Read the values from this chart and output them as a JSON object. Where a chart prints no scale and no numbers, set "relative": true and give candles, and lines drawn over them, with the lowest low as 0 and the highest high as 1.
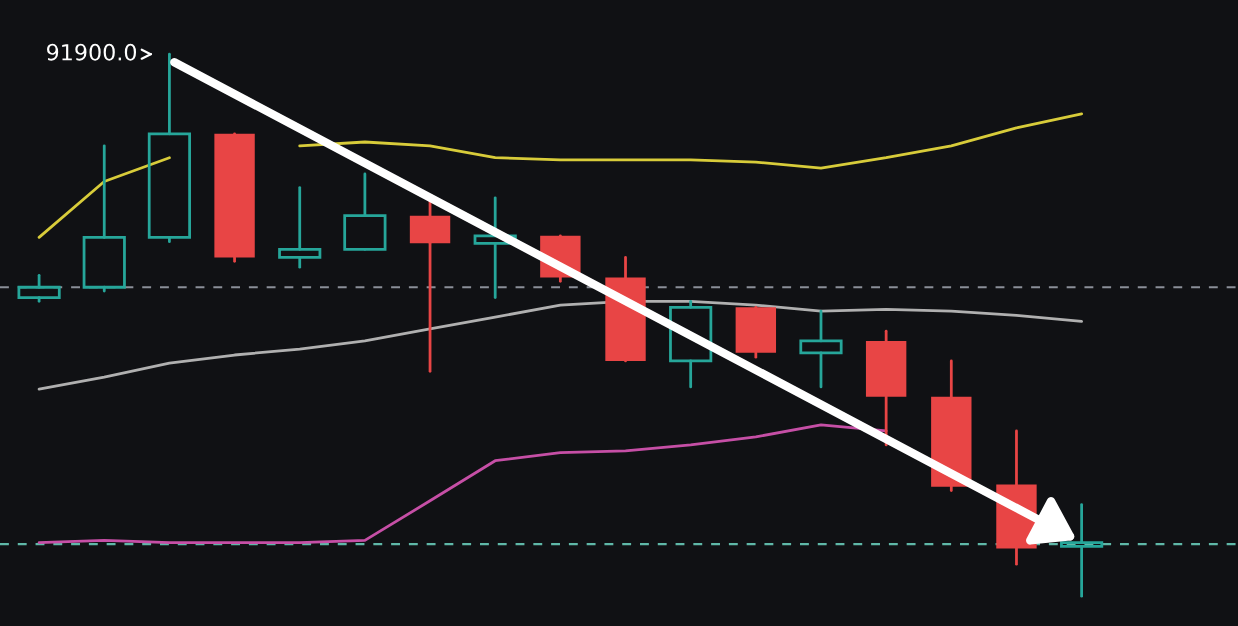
{
  "chart_data": {
    "type": "candlestick",
    "relative": true,
    "categories": [
      null,
      null,
      null,
      null,
      null,
      null,
      null,
      null,
      null,
      null,
      null,
      null,
      null,
      null,
      null,
      null,
      null
    ],
    "ohlc": [
      [
        0.551,
        0.592,
        0.544,
        0.57
      ],
      [
        0.57,
        0.831,
        0.563,
        0.662
      ],
      [
        0.662,
        1,
        0.654,
        0.853
      ],
      [
        0.853,
        0.853,
        0.618,
        0.625
      ],
      [
        0.625,
        0.754,
        0.607,
        0.64
      ],
      [
        0.64,
        0.779,
        0.64,
        0.702
      ],
      [
        0.702,
        0.728,
        0.415,
        0.651
      ],
      [
        0.651,
        0.735,
        0.551,
        0.665
      ],
      [
        0.665,
        0.665,
        0.581,
        0.588
      ],
      [
        0.588,
        0.625,
        0.434,
        0.434
      ],
      [
        0.434,
        0.544,
        0.386,
        0.533
      ],
      [
        0.533,
        0.533,
        0.441,
        0.449
      ],
      [
        0.449,
        0.526,
        0.386,
        0.471
      ],
      [
        0.471,
        0.489,
        0.279,
        0.368
      ],
      [
        0.368,
        0.434,
        0.195,
        0.202
      ],
      [
        0.206,
        0.305,
        0.059,
        0.088
      ],
      [
        0.092,
        0.169,
        0,
        0.099
      ]
    ],
    "colors": [
      "#26a69a",
      "#26a69a",
      "#26a69a",
      "#e84545",
      "#26a69a",
      "#26a69a",
      "#e84545",
      "#26a69a",
      "#e84545",
      "#e84545",
      "#26a69a",
      "#e84545",
      "#26a69a",
      "#e84545",
      "#e84545",
      "#e84545",
      "#26a69a"
    ],
    "series": [
      {
        "type": "line",
        "color": "#d8cc3a",
        "values": [
          0.662,
          0.765,
          0.809,
          null,
          0.831,
          0.838,
          0.831,
          0.809,
          0.805,
          0.805,
          0.805,
          0.801,
          0.79,
          0.809,
          0.831,
          0.864,
          0.89
        ]
      },
      {
        "type": "line",
        "color": "#b0b0b0",
        "values": [
          0.382,
          0.404,
          0.43,
          0.445,
          0.456,
          0.471,
          0.493,
          0.515,
          0.537,
          0.544,
          0.544,
          0.537,
          0.526,
          0.529,
          0.526,
          0.518,
          0.507
        ]
      },
      {
        "type": "line",
        "color": "#c64fa6",
        "values": [
          0.099,
          0.103,
          0.099,
          0.099,
          0.099,
          0.103,
          0.176,
          0.25,
          0.265,
          0.268,
          0.279,
          0.294,
          0.316,
          0.305,
          null,
          null,
          null
        ]
      }
    ],
    "ref_lines": [
      {
        "axis": "y",
        "value": 0.57,
        "color": "#8a8f98",
        "line_style": "dashed"
      },
      {
        "axis": "y",
        "value": 0.096,
        "color": "#5fb8a8",
        "line_style": "dashed"
      }
    ],
    "annotations": [
      "91900.0"
    ]
  }
}
